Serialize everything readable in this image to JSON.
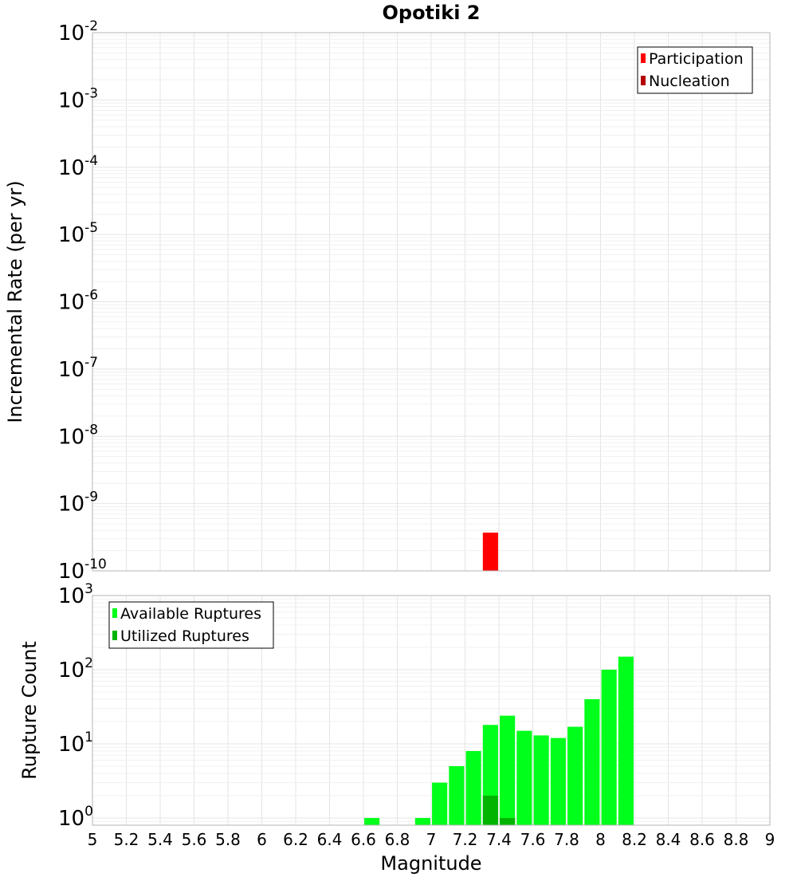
{
  "chart_data": [
    {
      "type": "bar",
      "title": "Opotiki 2",
      "xlabel": "",
      "ylabel": "Incremental Rate (per yr)",
      "yscale": "log",
      "xlim": [
        5,
        9
      ],
      "ylim": [
        1e-10,
        0.01
      ],
      "ytick_exponents": [
        "-2",
        "-3",
        "-4",
        "-5",
        "-6",
        "-7",
        "-8",
        "-9",
        "-10"
      ],
      "grid": true,
      "legend": {
        "position": "top-right",
        "entries": [
          "Participation",
          "Nucleation"
        ]
      },
      "series": [
        {
          "name": "Participation",
          "color": "#ff0000",
          "points": [
            {
              "x": 7.35,
              "y": 3.7e-10
            }
          ]
        },
        {
          "name": "Nucleation",
          "color": "#b40000",
          "points": []
        }
      ]
    },
    {
      "type": "bar",
      "title": "",
      "xlabel": "Magnitude",
      "ylabel": "Rupture Count",
      "yscale": "log",
      "xlim": [
        5,
        9
      ],
      "ylim": [
        0.8,
        1000
      ],
      "xtick_labels": [
        "5",
        "5.2",
        "5.4",
        "5.6",
        "5.8",
        "6",
        "6.2",
        "6.4",
        "6.6",
        "6.8",
        "7",
        "7.2",
        "7.4",
        "7.6",
        "7.8",
        "8",
        "8.2",
        "8.4",
        "8.6",
        "8.8",
        "9"
      ],
      "ytick_exponents": [
        "3",
        "2",
        "1",
        "0"
      ],
      "grid": true,
      "legend": {
        "position": "top-left",
        "entries": [
          "Available Ruptures",
          "Utilized Ruptures"
        ]
      },
      "series": [
        {
          "name": "Available Ruptures",
          "color": "#00ff1a",
          "points": [
            {
              "x": 6.65,
              "y": 1
            },
            {
              "x": 6.95,
              "y": 1
            },
            {
              "x": 7.05,
              "y": 3
            },
            {
              "x": 7.15,
              "y": 5
            },
            {
              "x": 7.25,
              "y": 8
            },
            {
              "x": 7.35,
              "y": 18
            },
            {
              "x": 7.45,
              "y": 24
            },
            {
              "x": 7.55,
              "y": 15
            },
            {
              "x": 7.65,
              "y": 13
            },
            {
              "x": 7.75,
              "y": 12
            },
            {
              "x": 7.85,
              "y": 17
            },
            {
              "x": 7.95,
              "y": 40
            },
            {
              "x": 8.05,
              "y": 100
            },
            {
              "x": 8.15,
              "y": 150
            }
          ]
        },
        {
          "name": "Utilized Ruptures",
          "color": "#00b400",
          "points": [
            {
              "x": 7.35,
              "y": 2
            },
            {
              "x": 7.45,
              "y": 1
            }
          ]
        }
      ]
    }
  ]
}
